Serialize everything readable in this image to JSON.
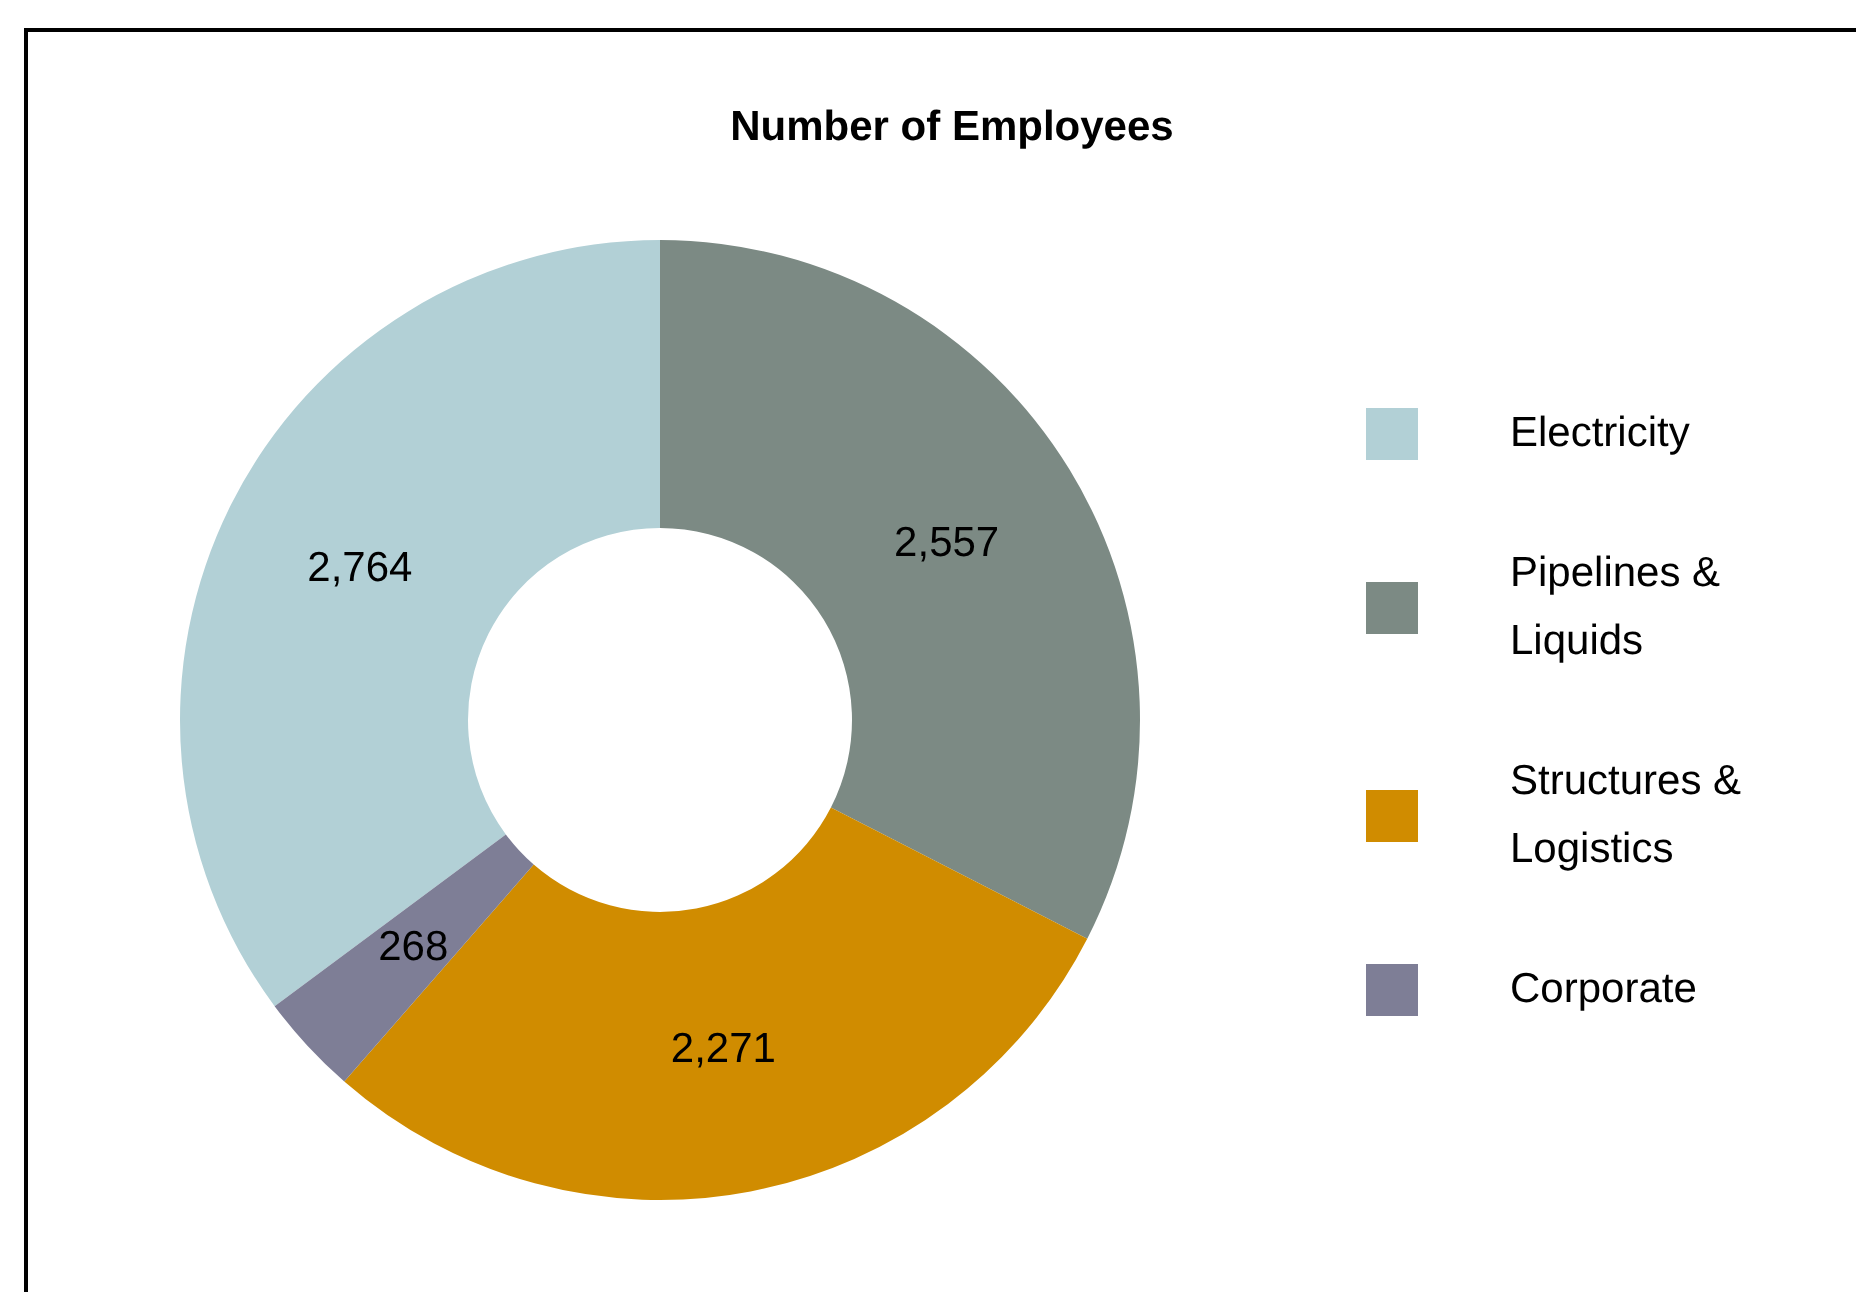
{
  "chart_data": {
    "type": "donut",
    "title": "Number of Employees",
    "categories": [
      "Electricity",
      "Pipelines & Liquids",
      "Structures & Logistics",
      "Corporate"
    ],
    "values": [
      2764,
      2557,
      2271,
      268
    ],
    "colors": [
      "#b2d0d6",
      "#7c8a84",
      "#d08c00",
      "#7e7e96"
    ],
    "value_labels": [
      "2,764",
      "2,557",
      "2,271",
      "268"
    ],
    "legend": "right"
  }
}
